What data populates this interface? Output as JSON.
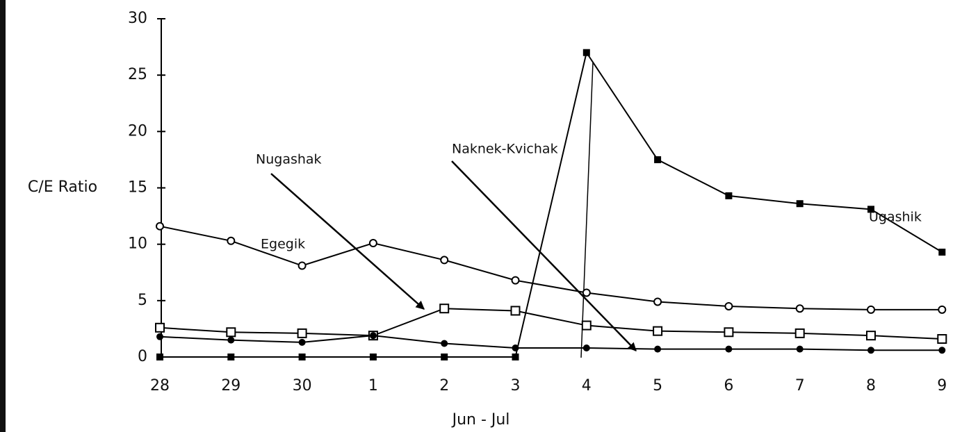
{
  "chart_data": {
    "type": "line",
    "y_label": "C/E Ratio",
    "x_label": "Jun - Jul",
    "categories": [
      "28",
      "29",
      "30",
      "1",
      "2",
      "3",
      "4",
      "5",
      "6",
      "7",
      "8",
      "9"
    ],
    "ylim": [
      0,
      30
    ],
    "yticks": [
      0,
      5,
      10,
      15,
      20,
      25,
      30
    ],
    "series": [
      {
        "name": "Egegik",
        "color": "#000000",
        "marker": "circle-open",
        "values": [
          11.6,
          10.3,
          8.1,
          10.1,
          8.6,
          6.8,
          5.7,
          4.9,
          4.5,
          4.3,
          4.2,
          4.2
        ]
      },
      {
        "name": "Nugashak",
        "color": "#000000",
        "marker": "square-open",
        "values": [
          2.6,
          2.2,
          2.1,
          1.9,
          4.3,
          4.1,
          2.8,
          2.3,
          2.2,
          2.1,
          1.9,
          1.6
        ]
      },
      {
        "name": "Naknek-Kvichak",
        "color": "#000000",
        "marker": "circle-filled",
        "values": [
          1.8,
          1.5,
          1.3,
          1.9,
          1.2,
          0.8,
          0.8,
          0.7,
          0.7,
          0.7,
          0.6,
          0.6
        ]
      },
      {
        "name": "Ugashik",
        "color": "#000000",
        "marker": "square-filled",
        "values": [
          0,
          0,
          0,
          0,
          0,
          0,
          27,
          17.5,
          14.3,
          13.6,
          13.1,
          9.3
        ]
      }
    ]
  }
}
